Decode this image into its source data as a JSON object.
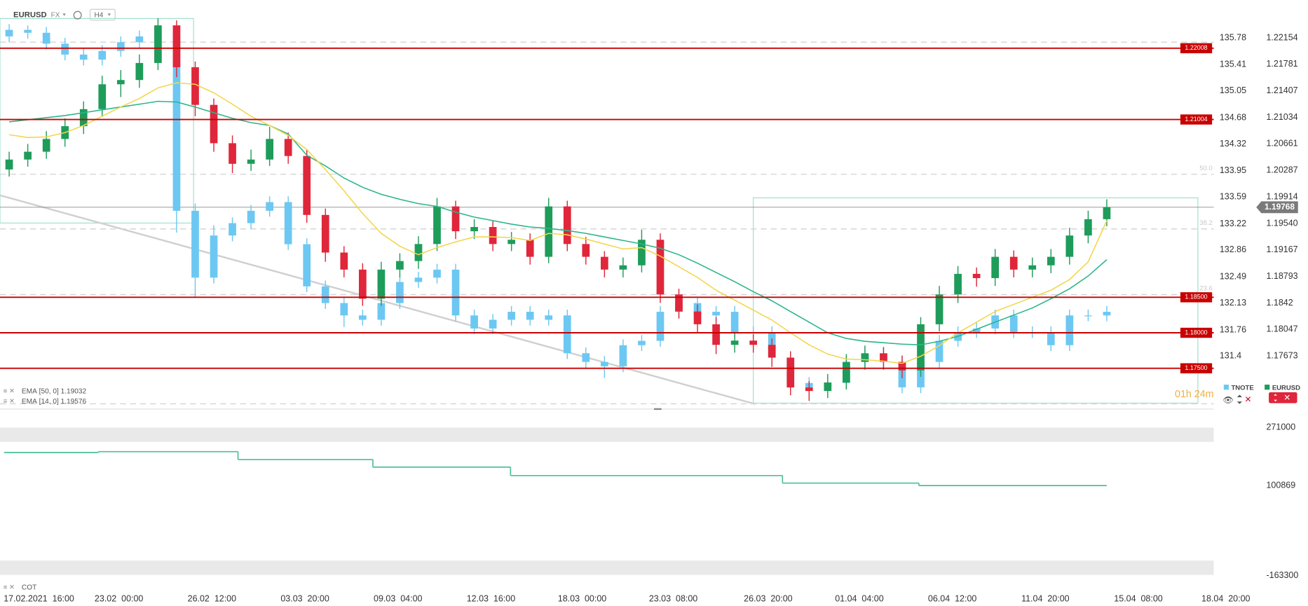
{
  "header": {
    "symbol": "EURUSD",
    "market": "FX",
    "timeframe": "H4"
  },
  "chart_data": [
    {
      "type": "candlestick",
      "xlim": [
        -0.493,
        64.75
      ],
      "ylim": [
        1.16997,
        1.22687
      ],
      "y2lim": [
        130.741,
        136.301
      ],
      "xticks": [
        {
          "value": 1.6,
          "label": "17.02.2021  16:00"
        },
        {
          "value": 5.9,
          "label": "23.02  00:00"
        },
        {
          "value": 10.9,
          "label": "26.02  12:00"
        },
        {
          "value": 15.9,
          "label": "03.03  20:00"
        },
        {
          "value": 20.9,
          "label": "09.03  04:00"
        },
        {
          "value": 25.9,
          "label": "12.03  16:00"
        },
        {
          "value": 30.8,
          "label": "18.03  00:00"
        },
        {
          "value": 35.7,
          "label": "23.03  08:00"
        },
        {
          "value": 40.8,
          "label": "26.03  20:00"
        },
        {
          "value": 45.7,
          "label": "01.04  04:00"
        },
        {
          "value": 50.7,
          "label": "06.04  12:00"
        },
        {
          "value": 55.7,
          "label": "11.04  20:00"
        },
        {
          "value": 60.7,
          "label": "15.04  08:00"
        },
        {
          "value": 65.4,
          "label": "18.04  20:00"
        }
      ],
      "yticks": [
        1.22154,
        1.21781,
        1.21407,
        1.21034,
        1.20661,
        1.20287,
        1.19914,
        {
          "value": 1.1954,
          "label": "1.19540"
        },
        1.19167,
        1.18793,
        1.1842,
        1.18047,
        1.17673
      ],
      "y2ticks": [
        135.78,
        135.41,
        135.05,
        134.68,
        134.32,
        133.95,
        133.59,
        133.22,
        132.86,
        132.49,
        132.13,
        131.76,
        131.4
      ],
      "series": [
        {
          "name": "TNOTE",
          "axis": "y2",
          "color": "#6cc8f2",
          "open": [
            135.8,
            135.89,
            135.85,
            135.7,
            135.55,
            135.48,
            135.6,
            135.72,
            135.8,
            135.78,
            133.4,
            132.48,
            133.06,
            133.23,
            133.4,
            133.52,
            132.94,
            132.36,
            132.13,
            131.96,
            131.9,
            132.13,
            132.42,
            132.48,
            132.59,
            131.96,
            131.78,
            131.9,
            132.01,
            131.9,
            131.96,
            131.44,
            131.32,
            131.26,
            131.55,
            131.61,
            132.01,
            132.13,
            131.96,
            132.01,
            131.73,
            131.73,
            131.38,
            131.03,
            130.97,
            131.03,
            131.32,
            131.44,
            131.32,
            130.97,
            131.32,
            131.61,
            131.73,
            131.78,
            131.96,
            131.73,
            131.73,
            131.55,
            131.96,
            131.96
          ],
          "high": [
            135.97,
            135.95,
            135.93,
            135.78,
            135.63,
            135.68,
            135.8,
            135.88,
            135.95,
            135.86,
            133.5,
            133.2,
            133.31,
            133.48,
            133.6,
            133.6,
            133.02,
            132.44,
            132.21,
            132.04,
            132.21,
            132.5,
            132.56,
            132.67,
            132.67,
            132.04,
            131.98,
            132.09,
            132.09,
            132.04,
            132.04,
            131.52,
            131.4,
            131.63,
            131.69,
            132.09,
            132.21,
            132.21,
            132.09,
            132.09,
            131.81,
            131.81,
            131.46,
            131.11,
            131.11,
            131.4,
            131.52,
            131.52,
            131.4,
            131.4,
            131.69,
            131.81,
            131.86,
            132.04,
            132.04,
            131.81,
            131.81,
            132.04,
            132.04,
            132.09
          ],
          "low": [
            135.72,
            135.77,
            135.62,
            135.47,
            135.4,
            135.4,
            135.52,
            135.64,
            135.7,
            133.1,
            132.2,
            132.4,
            132.98,
            133.15,
            133.32,
            132.86,
            132.28,
            132.05,
            131.8,
            131.82,
            131.82,
            132.05,
            132.34,
            132.4,
            131.88,
            131.7,
            131.7,
            131.82,
            131.82,
            131.82,
            131.36,
            131.24,
            131.1,
            131.18,
            131.47,
            131.53,
            131.93,
            131.88,
            131.88,
            131.65,
            131.65,
            131.3,
            130.95,
            130.89,
            130.89,
            130.95,
            131.24,
            131.24,
            130.89,
            130.89,
            131.24,
            131.53,
            131.65,
            131.7,
            131.65,
            131.65,
            131.47,
            131.47,
            131.88,
            131.88
          ],
          "close": [
            135.89,
            135.85,
            135.7,
            135.55,
            135.48,
            135.6,
            135.72,
            135.8,
            135.78,
            133.4,
            132.48,
            133.06,
            133.23,
            133.4,
            133.52,
            132.94,
            132.36,
            132.13,
            131.96,
            131.9,
            132.13,
            132.42,
            132.48,
            132.59,
            131.96,
            131.78,
            131.9,
            132.01,
            131.9,
            131.96,
            131.44,
            131.32,
            131.26,
            131.55,
            131.61,
            132.01,
            132.13,
            131.96,
            132.01,
            131.73,
            131.73,
            131.38,
            131.03,
            130.97,
            131.03,
            131.32,
            131.44,
            131.32,
            130.97,
            131.32,
            131.61,
            131.73,
            131.78,
            131.96,
            131.73,
            131.73,
            131.55,
            131.96,
            131.96,
            132.01
          ]
        },
        {
          "name": "EURUSD",
          "color_up": "#1e9c5a",
          "color_down": "#e0263a",
          "open": [
            1.203,
            1.2044,
            1.2055,
            1.2073,
            1.2091,
            1.2115,
            1.215,
            1.2156,
            1.218,
            1.2233,
            1.2174,
            1.2121,
            1.2067,
            1.2038,
            1.2044,
            1.2073,
            1.2049,
            1.1966,
            1.1913,
            1.1889,
            1.1848,
            1.1889,
            1.1901,
            1.1925,
            1.1978,
            1.1943,
            1.1949,
            1.1925,
            1.1931,
            1.1907,
            1.1978,
            1.1925,
            1.1907,
            1.1889,
            1.1895,
            1.1931,
            1.1854,
            1.183,
            1.1812,
            1.1783,
            1.1789,
            1.1783,
            1.1765,
            1.1723,
            1.1718,
            1.173,
            1.1759,
            1.1771,
            1.1759,
            1.1747,
            1.1812,
            1.1854,
            1.1883,
            1.1877,
            1.1907,
            1.1889,
            1.1895,
            1.1907,
            1.1937,
            1.196
          ],
          "high": [
            1.2055,
            1.2066,
            1.2084,
            1.2102,
            1.2126,
            1.2162,
            1.217,
            1.2192,
            1.2243,
            1.224,
            1.2182,
            1.213,
            1.2078,
            1.2058,
            1.209,
            1.2082,
            1.2058,
            1.1975,
            1.1922,
            1.1898,
            1.19,
            1.1912,
            1.1936,
            1.199,
            1.1986,
            1.196,
            1.1958,
            1.1942,
            1.194,
            1.199,
            1.1986,
            1.1935,
            1.1915,
            1.1906,
            1.1945,
            1.194,
            1.1862,
            1.184,
            1.1822,
            1.18,
            1.1798,
            1.1792,
            1.1774,
            1.1732,
            1.1742,
            1.177,
            1.1782,
            1.178,
            1.1768,
            1.1822,
            1.1866,
            1.1894,
            1.1892,
            1.1918,
            1.1916,
            1.1906,
            1.1918,
            1.1948,
            1.1972,
            1.1988
          ],
          "low": [
            1.202,
            1.2034,
            1.2045,
            1.2062,
            1.208,
            1.2105,
            1.2132,
            1.2145,
            1.217,
            1.216,
            1.2105,
            1.2055,
            1.2025,
            1.2028,
            1.2035,
            1.2038,
            1.1955,
            1.19,
            1.1878,
            1.1838,
            1.1838,
            1.1878,
            1.189,
            1.1915,
            1.1932,
            1.1932,
            1.1915,
            1.1915,
            1.1896,
            1.1898,
            1.1915,
            1.1896,
            1.1878,
            1.1878,
            1.1885,
            1.1842,
            1.182,
            1.18,
            1.177,
            1.1772,
            1.1772,
            1.1752,
            1.1712,
            1.1704,
            1.1708,
            1.172,
            1.1748,
            1.1748,
            1.1736,
            1.1738,
            1.1802,
            1.1842,
            1.1865,
            1.1866,
            1.1878,
            1.1878,
            1.1884,
            1.1896,
            1.1926,
            1.195
          ],
          "close": [
            1.2044,
            1.2055,
            1.2073,
            1.2091,
            1.2115,
            1.215,
            1.2156,
            1.218,
            1.2233,
            1.2174,
            1.2121,
            1.2067,
            1.2038,
            1.2044,
            1.2073,
            1.2049,
            1.1966,
            1.1913,
            1.1889,
            1.1848,
            1.1889,
            1.1901,
            1.1925,
            1.1978,
            1.1943,
            1.1949,
            1.1925,
            1.1931,
            1.1907,
            1.1978,
            1.1925,
            1.1907,
            1.1889,
            1.1895,
            1.1931,
            1.1854,
            1.183,
            1.1812,
            1.1783,
            1.1789,
            1.1783,
            1.1765,
            1.1723,
            1.1718,
            1.173,
            1.1759,
            1.1771,
            1.1759,
            1.1747,
            1.1812,
            1.1854,
            1.1883,
            1.1877,
            1.1907,
            1.1889,
            1.1895,
            1.1907,
            1.1937,
            1.196,
            1.1977
          ]
        }
      ],
      "indicators": [
        {
          "name": "EMA",
          "params": "[50, 0]",
          "last": 1.19032,
          "color": "#2bb58a",
          "values": [
            1.2097,
            1.21,
            1.2103,
            1.2106,
            1.211,
            1.2114,
            1.2118,
            1.2122,
            1.2126,
            1.2125,
            1.2118,
            1.211,
            1.2102,
            1.2096,
            1.2092,
            1.208,
            1.205,
            1.2035,
            1.2018,
            1.2005,
            1.1995,
            1.1988,
            1.1982,
            1.1978,
            1.197,
            1.1963,
            1.1958,
            1.1953,
            1.1949,
            1.1947,
            1.1944,
            1.194,
            1.1935,
            1.193,
            1.1925,
            1.1919,
            1.191,
            1.1898,
            1.1885,
            1.1872,
            1.1858,
            1.1845,
            1.183,
            1.1815,
            1.18,
            1.1792,
            1.1788,
            1.1786,
            1.1784,
            1.1783,
            1.1788,
            1.1795,
            1.1805,
            1.1815,
            1.1825,
            1.1835,
            1.1848,
            1.1862,
            1.188,
            1.1903
          ]
        },
        {
          "name": "EMA",
          "params": "[14, 0]",
          "last": 1.19576,
          "color": "#f2d64b",
          "values": [
            1.2079,
            1.2075,
            1.2076,
            1.2082,
            1.2092,
            1.2105,
            1.2118,
            1.213,
            1.2145,
            1.2152,
            1.215,
            1.2138,
            1.2122,
            1.2105,
            1.2092,
            1.2078,
            1.2058,
            1.203,
            1.2,
            1.1968,
            1.194,
            1.1922,
            1.191,
            1.192,
            1.1928,
            1.1935,
            1.1935,
            1.1934,
            1.193,
            1.194,
            1.1938,
            1.1932,
            1.1925,
            1.1918,
            1.192,
            1.1908,
            1.1893,
            1.1878,
            1.186,
            1.1846,
            1.1832,
            1.1818,
            1.18,
            1.1783,
            1.177,
            1.1763,
            1.1762,
            1.176,
            1.1757,
            1.1767,
            1.1782,
            1.18,
            1.1815,
            1.183,
            1.184,
            1.185,
            1.186,
            1.1875,
            1.19,
            1.1958
          ]
        }
      ],
      "levels": [
        {
          "value": 1.22008,
          "label": "1.22008"
        },
        {
          "value": 1.21004,
          "label": "1.21004"
        },
        {
          "value": 1.185,
          "label": "1.18500"
        },
        {
          "value": 1.18,
          "label": "1.18000"
        },
        {
          "value": 1.175,
          "label": "1.17500"
        }
      ],
      "fib_levels": [
        {
          "value": 1.22094
        },
        {
          "value": 1.20233,
          "label": "50.0"
        },
        {
          "value": 1.19463,
          "label": "38.2"
        },
        {
          "value": 1.18538,
          "label": "23.6"
        },
        {
          "value": 1.17
        }
      ],
      "last_price": 1.19768,
      "timer": "01h 24m"
    },
    {
      "type": "step",
      "title": "COT",
      "color": "#4cbf9a",
      "xlim": [
        -0.493,
        64.75
      ],
      "ylim": [
        -178100,
        310470
      ],
      "yticks": [
        271000,
        100869,
        -163300
      ],
      "x": [
        -0.27,
        4.8,
        12.3,
        19.55,
        26.95,
        41.57,
        48.9
      ],
      "values": [
        197970,
        200430,
        177230,
        155020,
        130350,
        108140,
        100869
      ]
    }
  ]
}
